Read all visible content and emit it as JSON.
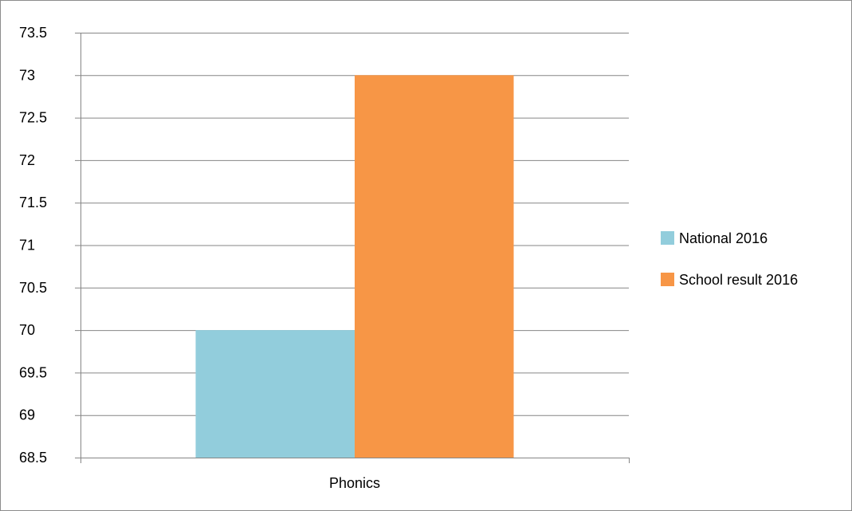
{
  "chart_data": {
    "type": "bar",
    "categories": [
      "Phonics"
    ],
    "series": [
      {
        "name": "National 2016",
        "values": [
          70
        ],
        "color": "#92CDDC"
      },
      {
        "name": "School result 2016",
        "values": [
          73
        ],
        "color": "#F79646"
      }
    ],
    "title": "",
    "xlabel": "",
    "ylabel": "",
    "ylim": [
      68.5,
      73.5
    ],
    "y_ticks": [
      "68.5",
      "69",
      "69.5",
      "70",
      "70.5",
      "71",
      "71.5",
      "72",
      "72.5",
      "73",
      "73.5"
    ],
    "grid": true,
    "legend_position": "right"
  }
}
